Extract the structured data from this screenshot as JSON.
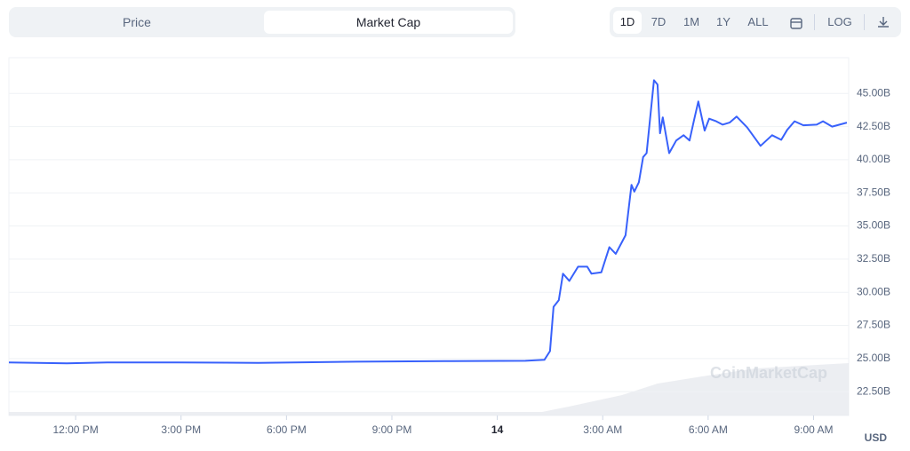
{
  "toolbar": {
    "tabs": [
      "Price",
      "Market Cap"
    ],
    "ranges": [
      "1D",
      "7D",
      "1M",
      "1Y",
      "ALL"
    ],
    "log": "LOG"
  },
  "chart_data": {
    "type": "line",
    "watermark": "CoinMarketCap",
    "currency": "USD",
    "x": [
      10.1,
      11.75,
      12.9,
      14.9,
      17.2,
      20,
      22.5,
      24.8,
      25.34,
      25.5,
      25.6,
      25.75,
      25.87,
      26.05,
      26.3,
      26.56,
      26.68,
      26.96,
      27.19,
      27.37,
      27.65,
      27.82,
      27.9,
      28.03,
      28.15,
      28.25,
      28.46,
      28.56,
      28.63,
      28.71,
      28.89,
      29.09,
      29.3,
      29.47,
      29.6,
      29.72,
      29.9,
      30.03,
      30.23,
      30.41,
      30.61,
      30.81,
      31.11,
      31.49,
      31.82,
      32.08,
      32.25,
      32.46,
      32.71,
      33.09,
      33.27,
      33.53,
      33.95
    ],
    "series": [
      {
        "name": "Market Cap",
        "color": "#3861fb",
        "values": [
          24.7,
          24.63,
          24.7,
          24.7,
          24.67,
          24.76,
          24.8,
          24.83,
          24.9,
          25.56,
          28.9,
          29.4,
          31.4,
          30.86,
          31.93,
          31.93,
          31.4,
          31.5,
          33.4,
          32.9,
          34.3,
          38.1,
          37.6,
          38.3,
          40.2,
          40.5,
          46.0,
          45.67,
          42.0,
          43.2,
          40.5,
          41.45,
          41.85,
          41.45,
          43.0,
          44.4,
          42.2,
          43.1,
          42.9,
          42.65,
          42.8,
          43.26,
          42.45,
          41.05,
          41.85,
          41.5,
          42.25,
          42.9,
          42.6,
          42.65,
          42.9,
          42.5,
          42.8
        ]
      }
    ],
    "xlim": [
      10.1,
      34.0
    ],
    "xticks": [
      {
        "value": 12,
        "label": "12:00 PM"
      },
      {
        "value": 15,
        "label": "3:00 PM"
      },
      {
        "value": 18,
        "label": "6:00 PM"
      },
      {
        "value": 21,
        "label": "9:00 PM"
      },
      {
        "value": 24,
        "label": "14"
      },
      {
        "value": 27,
        "label": "3:00 AM"
      },
      {
        "value": 30,
        "label": "6:00 AM"
      },
      {
        "value": 33,
        "label": "9:00 AM"
      }
    ],
    "ylim": [
      20.7,
      47.7
    ],
    "yticks": [
      {
        "value": 22.5,
        "label": "22.50B"
      },
      {
        "value": 25,
        "label": "25.00B"
      },
      {
        "value": 27.5,
        "label": "27.50B"
      },
      {
        "value": 30,
        "label": "30.00B"
      },
      {
        "value": 32.5,
        "label": "32.50B"
      },
      {
        "value": 35,
        "label": "35.00B"
      },
      {
        "value": 37.5,
        "label": "37.50B"
      },
      {
        "value": 40,
        "label": "40.00B"
      },
      {
        "value": 42.5,
        "label": "42.50B"
      },
      {
        "value": 45,
        "label": "45.00B"
      }
    ],
    "grid": true
  }
}
